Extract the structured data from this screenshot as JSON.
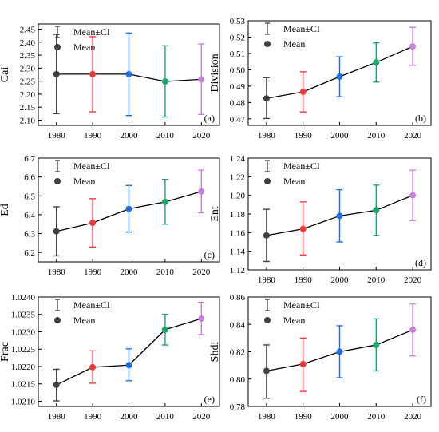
{
  "legend": {
    "ci_label": "Mean±CI",
    "mean_label": "Mean"
  },
  "colors": {
    "1980": "#404040",
    "1990": "#f0393b",
    "2000": "#1f6fe0",
    "2010": "#14a86a",
    "2020": "#cc7ee0",
    "line": "#000000"
  },
  "chart_data": [
    {
      "type": "line",
      "panel": "(a)",
      "ylabel": "Cai",
      "x": [
        "1980",
        "1990",
        "2000",
        "2010",
        "2020"
      ],
      "ylim": [
        2.08,
        2.47
      ],
      "yticks": [
        "2.10",
        "2.15",
        "2.20",
        "2.25",
        "2.30",
        "2.35",
        "2.40",
        "2.45"
      ],
      "mean": [
        2.277,
        2.277,
        2.277,
        2.249,
        2.257
      ],
      "ci_low": [
        2.125,
        2.132,
        2.118,
        2.112,
        2.122
      ],
      "ci_high": [
        2.43,
        2.421,
        2.435,
        2.386,
        2.393
      ]
    },
    {
      "type": "line",
      "panel": "(b)",
      "ylabel": "Division",
      "x": [
        "1980",
        "1990",
        "2000",
        "2010",
        "2020"
      ],
      "ylim": [
        0.466,
        0.53
      ],
      "yticks": [
        "0.47",
        "0.48",
        "0.49",
        "0.50",
        "0.51",
        "0.52",
        "0.53"
      ],
      "mean": [
        0.4825,
        0.4865,
        0.4958,
        0.5045,
        0.5143
      ],
      "ci_low": [
        0.4702,
        0.4742,
        0.4835,
        0.4925,
        0.5028
      ],
      "ci_high": [
        0.4952,
        0.4988,
        0.508,
        0.5165,
        0.526
      ]
    },
    {
      "type": "line",
      "panel": "(c)",
      "ylabel": "Ed",
      "x": [
        "1980",
        "1990",
        "2000",
        "2010",
        "2020"
      ],
      "ylim": [
        6.15,
        6.7
      ],
      "yticks": [
        "6.2",
        "6.3",
        "6.4",
        "6.5",
        "6.6",
        "6.7"
      ],
      "mean": [
        6.312,
        6.357,
        6.431,
        6.468,
        6.523
      ],
      "ci_low": [
        6.182,
        6.229,
        6.308,
        6.35,
        6.41
      ],
      "ci_high": [
        6.442,
        6.485,
        6.555,
        6.587,
        6.636
      ]
    },
    {
      "type": "line",
      "panel": "(d)",
      "ylabel": "Ent",
      "x": [
        "1980",
        "1990",
        "2000",
        "2010",
        "2020"
      ],
      "ylim": [
        1.12,
        1.24
      ],
      "yticks": [
        "1.12",
        "1.14",
        "1.16",
        "1.18",
        "1.20",
        "1.22",
        "1.24"
      ],
      "mean": [
        1.157,
        1.164,
        1.178,
        1.184,
        1.2
      ],
      "ci_low": [
        1.129,
        1.136,
        1.15,
        1.157,
        1.173
      ],
      "ci_high": [
        1.185,
        1.193,
        1.206,
        1.211,
        1.227
      ]
    },
    {
      "type": "line",
      "panel": "(e)",
      "ylabel": "Frac",
      "x": [
        "1980",
        "1990",
        "2000",
        "2010",
        "2020"
      ],
      "ylim": [
        1.02085,
        1.024
      ],
      "yticks": [
        "1.0210",
        "1.0215",
        "1.0220",
        "1.0225",
        "1.0230",
        "1.0235",
        "1.0240"
      ],
      "mean": [
        1.02147,
        1.02198,
        1.02204,
        1.02306,
        1.02338
      ],
      "ci_low": [
        1.02101,
        1.02152,
        1.02159,
        1.02262,
        1.02292
      ],
      "ci_high": [
        1.02192,
        1.02245,
        1.02251,
        1.0235,
        1.02385
      ]
    },
    {
      "type": "line",
      "panel": "(f)",
      "ylabel": "Shdi",
      "x": [
        "1980",
        "1990",
        "2000",
        "2010",
        "2020"
      ],
      "ylim": [
        0.78,
        0.86
      ],
      "yticks": [
        "0.78",
        "0.80",
        "0.82",
        "0.84",
        "0.86"
      ],
      "mean": [
        0.806,
        0.811,
        0.82,
        0.825,
        0.836
      ],
      "ci_low": [
        0.786,
        0.791,
        0.801,
        0.806,
        0.817
      ],
      "ci_high": [
        0.825,
        0.83,
        0.839,
        0.844,
        0.855
      ]
    }
  ]
}
